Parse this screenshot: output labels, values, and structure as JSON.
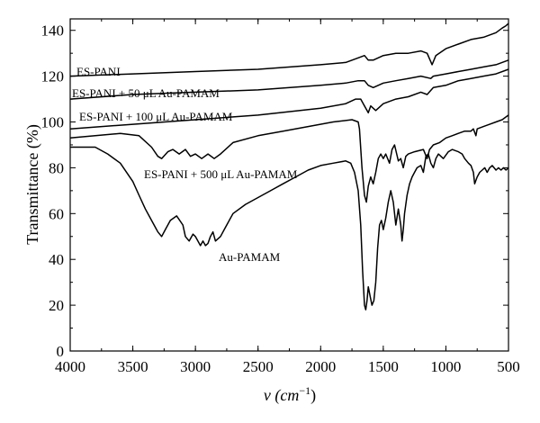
{
  "chart_data": {
    "type": "line",
    "title": "",
    "xlabel_prefix": "ν (cm",
    "xlabel_sup": "−1",
    "xlabel_suffix": ")",
    "ylabel": "Transmittance (%)",
    "xlim": [
      4000,
      500
    ],
    "ylim": [
      0,
      145
    ],
    "x_ticks": [
      4000,
      3500,
      3000,
      2500,
      2000,
      1500,
      1000,
      500
    ],
    "y_ticks": [
      0,
      20,
      40,
      60,
      80,
      100,
      120,
      140
    ],
    "series": [
      {
        "name": "ES-PANI",
        "label": "ES-PANI",
        "points": [
          [
            4000,
            120
          ],
          [
            3500,
            121
          ],
          [
            3000,
            122
          ],
          [
            2500,
            123
          ],
          [
            2000,
            125
          ],
          [
            1800,
            126
          ],
          [
            1700,
            128
          ],
          [
            1650,
            129
          ],
          [
            1620,
            127
          ],
          [
            1580,
            127
          ],
          [
            1500,
            129
          ],
          [
            1400,
            130
          ],
          [
            1300,
            130
          ],
          [
            1200,
            131
          ],
          [
            1150,
            130
          ],
          [
            1110,
            125
          ],
          [
            1080,
            129
          ],
          [
            1000,
            132
          ],
          [
            900,
            134
          ],
          [
            800,
            136
          ],
          [
            700,
            137
          ],
          [
            600,
            139
          ],
          [
            550,
            141
          ],
          [
            520,
            142
          ],
          [
            500,
            143
          ]
        ]
      },
      {
        "name": "ES-PANI + 50 µL Au-PAMAM",
        "label": "ES-PANI + 50 μL Au-PAMAM",
        "points": [
          [
            4000,
            110
          ],
          [
            3500,
            112
          ],
          [
            3000,
            113
          ],
          [
            2500,
            114
          ],
          [
            2000,
            116
          ],
          [
            1800,
            117
          ],
          [
            1700,
            118
          ],
          [
            1650,
            118
          ],
          [
            1620,
            116
          ],
          [
            1580,
            115
          ],
          [
            1500,
            117
          ],
          [
            1400,
            118
          ],
          [
            1300,
            119
          ],
          [
            1200,
            120
          ],
          [
            1120,
            119
          ],
          [
            1100,
            120
          ],
          [
            1000,
            121
          ],
          [
            900,
            122
          ],
          [
            800,
            123
          ],
          [
            700,
            124
          ],
          [
            600,
            125
          ],
          [
            500,
            127
          ]
        ]
      },
      {
        "name": "ES-PANI + 100 µL Au-PAMAM",
        "label": "ES-PANI + 100 μL Au-PAMAM",
        "points": [
          [
            4000,
            97
          ],
          [
            3500,
            99
          ],
          [
            3000,
            101
          ],
          [
            2500,
            103
          ],
          [
            2000,
            106
          ],
          [
            1800,
            108
          ],
          [
            1720,
            110
          ],
          [
            1680,
            110
          ],
          [
            1650,
            107
          ],
          [
            1620,
            104
          ],
          [
            1600,
            107
          ],
          [
            1560,
            105
          ],
          [
            1500,
            108
          ],
          [
            1400,
            110
          ],
          [
            1300,
            111
          ],
          [
            1200,
            113
          ],
          [
            1150,
            112
          ],
          [
            1100,
            115
          ],
          [
            1000,
            116
          ],
          [
            900,
            118
          ],
          [
            800,
            119
          ],
          [
            700,
            120
          ],
          [
            600,
            121
          ],
          [
            500,
            123
          ]
        ]
      },
      {
        "name": "ES-PANI + 500 µL Au-PAMAM",
        "label": "ES-PANI + 500 μL Au-PAMAM",
        "points": [
          [
            4000,
            93
          ],
          [
            3800,
            94
          ],
          [
            3600,
            95
          ],
          [
            3450,
            94
          ],
          [
            3350,
            89
          ],
          [
            3300,
            85
          ],
          [
            3270,
            84
          ],
          [
            3220,
            87
          ],
          [
            3180,
            88
          ],
          [
            3130,
            86
          ],
          [
            3080,
            88
          ],
          [
            3040,
            85
          ],
          [
            3000,
            86
          ],
          [
            2950,
            84
          ],
          [
            2900,
            86
          ],
          [
            2850,
            84
          ],
          [
            2800,
            86
          ],
          [
            2700,
            91
          ],
          [
            2500,
            94
          ],
          [
            2300,
            96
          ],
          [
            2100,
            98
          ],
          [
            1900,
            100
          ],
          [
            1750,
            101
          ],
          [
            1700,
            100
          ],
          [
            1690,
            97
          ],
          [
            1670,
            80
          ],
          [
            1650,
            68
          ],
          [
            1635,
            65
          ],
          [
            1620,
            72
          ],
          [
            1600,
            76
          ],
          [
            1580,
            73
          ],
          [
            1560,
            78
          ],
          [
            1540,
            84
          ],
          [
            1520,
            86
          ],
          [
            1500,
            84
          ],
          [
            1480,
            86
          ],
          [
            1450,
            82
          ],
          [
            1430,
            88
          ],
          [
            1410,
            90
          ],
          [
            1380,
            83
          ],
          [
            1360,
            84
          ],
          [
            1340,
            80
          ],
          [
            1320,
            85
          ],
          [
            1300,
            86
          ],
          [
            1250,
            87
          ],
          [
            1180,
            88
          ],
          [
            1150,
            84
          ],
          [
            1130,
            88
          ],
          [
            1100,
            90
          ],
          [
            1050,
            91
          ],
          [
            1000,
            93
          ],
          [
            950,
            94
          ],
          [
            900,
            95
          ],
          [
            850,
            96
          ],
          [
            800,
            96
          ],
          [
            780,
            97
          ],
          [
            760,
            94
          ],
          [
            750,
            97
          ],
          [
            700,
            98
          ],
          [
            650,
            99
          ],
          [
            600,
            100
          ],
          [
            550,
            101
          ],
          [
            500,
            103
          ]
        ]
      },
      {
        "name": "Au-PAMAM",
        "label": "Au-PAMAM",
        "points": [
          [
            4000,
            89
          ],
          [
            3900,
            89
          ],
          [
            3800,
            89
          ],
          [
            3700,
            86
          ],
          [
            3600,
            82
          ],
          [
            3500,
            74
          ],
          [
            3450,
            68
          ],
          [
            3400,
            62
          ],
          [
            3350,
            57
          ],
          [
            3300,
            52
          ],
          [
            3270,
            50
          ],
          [
            3240,
            53
          ],
          [
            3200,
            57
          ],
          [
            3150,
            59
          ],
          [
            3100,
            55
          ],
          [
            3080,
            50
          ],
          [
            3050,
            48
          ],
          [
            3020,
            51
          ],
          [
            3000,
            50
          ],
          [
            2960,
            46
          ],
          [
            2940,
            48
          ],
          [
            2920,
            46
          ],
          [
            2900,
            47
          ],
          [
            2880,
            50
          ],
          [
            2860,
            52
          ],
          [
            2840,
            48
          ],
          [
            2820,
            49
          ],
          [
            2800,
            50
          ],
          [
            2760,
            54
          ],
          [
            2700,
            60
          ],
          [
            2600,
            64
          ],
          [
            2500,
            67
          ],
          [
            2400,
            70
          ],
          [
            2300,
            73
          ],
          [
            2200,
            76
          ],
          [
            2100,
            79
          ],
          [
            2000,
            81
          ],
          [
            1900,
            82
          ],
          [
            1800,
            83
          ],
          [
            1760,
            82
          ],
          [
            1730,
            78
          ],
          [
            1700,
            70
          ],
          [
            1680,
            55
          ],
          [
            1665,
            35
          ],
          [
            1650,
            20
          ],
          [
            1640,
            18
          ],
          [
            1630,
            22
          ],
          [
            1620,
            28
          ],
          [
            1605,
            24
          ],
          [
            1590,
            20
          ],
          [
            1575,
            22
          ],
          [
            1560,
            30
          ],
          [
            1545,
            45
          ],
          [
            1530,
            55
          ],
          [
            1515,
            57
          ],
          [
            1500,
            53
          ],
          [
            1480,
            58
          ],
          [
            1460,
            65
          ],
          [
            1440,
            70
          ],
          [
            1420,
            65
          ],
          [
            1400,
            55
          ],
          [
            1380,
            62
          ],
          [
            1360,
            55
          ],
          [
            1350,
            48
          ],
          [
            1340,
            53
          ],
          [
            1330,
            60
          ],
          [
            1310,
            68
          ],
          [
            1290,
            73
          ],
          [
            1270,
            76
          ],
          [
            1250,
            78
          ],
          [
            1230,
            80
          ],
          [
            1200,
            81
          ],
          [
            1180,
            78
          ],
          [
            1160,
            85
          ],
          [
            1140,
            86
          ],
          [
            1120,
            82
          ],
          [
            1100,
            80
          ],
          [
            1080,
            84
          ],
          [
            1060,
            86
          ],
          [
            1040,
            85
          ],
          [
            1020,
            84
          ],
          [
            980,
            87
          ],
          [
            950,
            88
          ],
          [
            900,
            87
          ],
          [
            870,
            86
          ],
          [
            850,
            84
          ],
          [
            820,
            82
          ],
          [
            800,
            81
          ],
          [
            780,
            78
          ],
          [
            770,
            73
          ],
          [
            750,
            76
          ],
          [
            730,
            78
          ],
          [
            710,
            79
          ],
          [
            690,
            80
          ],
          [
            670,
            78
          ],
          [
            650,
            80
          ],
          [
            630,
            81
          ],
          [
            600,
            79
          ],
          [
            580,
            80
          ],
          [
            560,
            79
          ],
          [
            540,
            80
          ],
          [
            520,
            79
          ],
          [
            500,
            80
          ]
        ]
      }
    ]
  }
}
